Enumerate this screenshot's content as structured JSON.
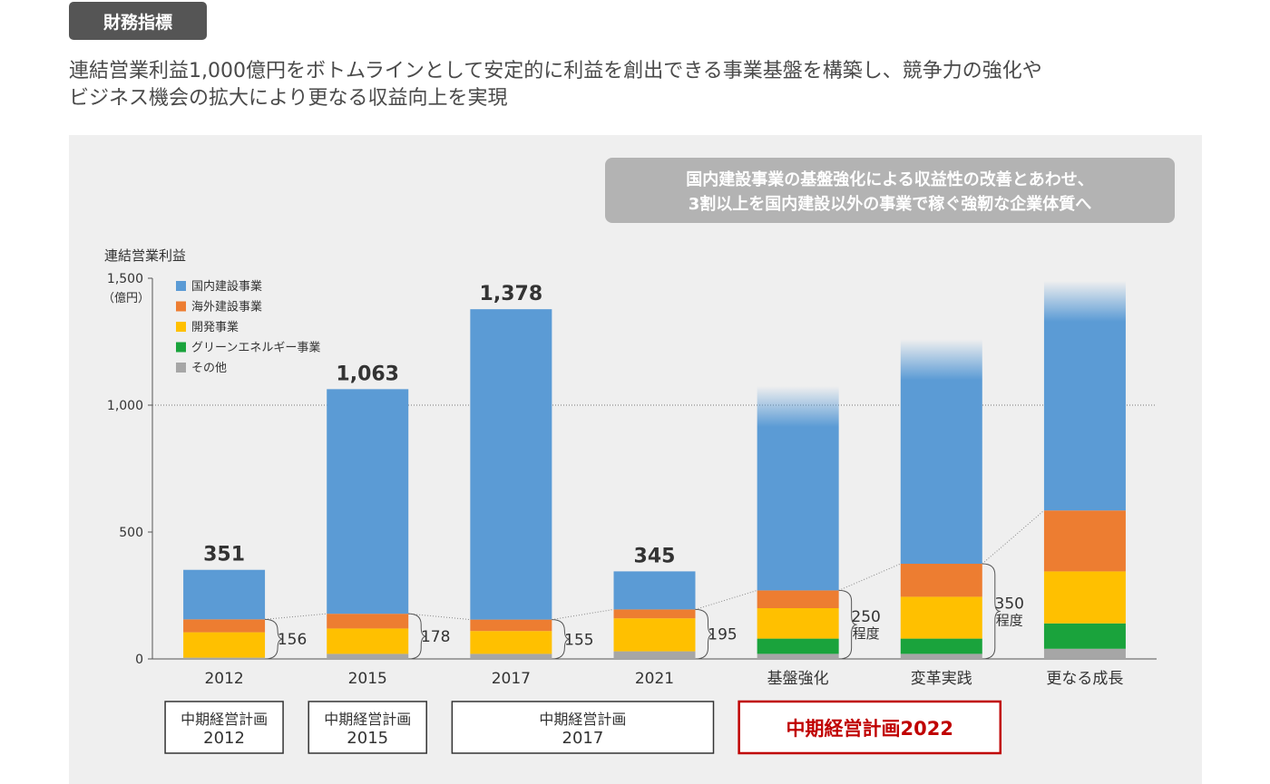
{
  "header": {
    "tag": "財務指標",
    "lead_line1": "連結営業利益1,000億円をボトムラインとして安定的に利益を創出できる事業基盤を構築し、競争力の強化や",
    "lead_line2": "ビジネス機会の拡大により更なる収益向上を実現"
  },
  "callout": {
    "line1": "国内建設事業の基盤強化による収益性の改善とあわせ、",
    "line2": "3割以上を国内建設以外の事業で稼ぐ強靭な企業体質へ"
  },
  "chart_data": {
    "type": "bar",
    "stacked": true,
    "title": "",
    "ylabel": "連結営業利益",
    "yunit": "（億円）",
    "ylim": [
      0,
      1500
    ],
    "yticks": [
      0,
      500,
      1000,
      1500
    ],
    "ytick_labels": [
      "0",
      "500",
      "1,000",
      "1,500"
    ],
    "reference_line": 1000,
    "legend_position": "top-left",
    "categories": [
      "2012",
      "2015",
      "2017",
      "2021",
      "基盤強化",
      "変革実践",
      "更なる成長"
    ],
    "series": [
      {
        "name": "その他",
        "color": "#a6a6a6",
        "values": [
          5,
          20,
          20,
          30,
          20,
          20,
          40
        ]
      },
      {
        "name": "グリーンエネルギー事業",
        "color": "#1aa33c",
        "values": [
          0,
          0,
          0,
          0,
          60,
          60,
          100
        ]
      },
      {
        "name": "開発事業",
        "color": "#ffc000",
        "values": [
          100,
          100,
          90,
          130,
          120,
          165,
          205
        ]
      },
      {
        "name": "海外建設事業",
        "color": "#ed7d31",
        "values": [
          51,
          58,
          45,
          35,
          70,
          130,
          240
        ]
      },
      {
        "name": "国内建設事業",
        "color": "#5b9bd5",
        "values": [
          195,
          885,
          1223,
          150,
          805,
          885,
          905
        ]
      }
    ],
    "legend_order": [
      "国内建設事業",
      "海外建設事業",
      "開発事業",
      "グリーンエネルギー事業",
      "その他"
    ],
    "fade_top": [
      false,
      false,
      false,
      false,
      true,
      true,
      true
    ],
    "totals": [
      "351",
      "1,063",
      "1,378",
      "345",
      "",
      "",
      ""
    ],
    "non_domestic_labels": [
      "156",
      "178",
      "155",
      "195",
      "250\n程度",
      "350\n程度",
      ""
    ],
    "plan_boxes": [
      {
        "label": "中期経営計画\n2012",
        "from": 0,
        "to": 0,
        "highlight": false
      },
      {
        "label": "中期経営計画\n2015",
        "from": 1,
        "to": 1,
        "highlight": false
      },
      {
        "label": "中期経営計画\n2017",
        "from": 2,
        "to": 3,
        "highlight": false
      },
      {
        "label": "中期経営計画2022",
        "from": 4,
        "to": 5,
        "highlight": true
      }
    ]
  }
}
